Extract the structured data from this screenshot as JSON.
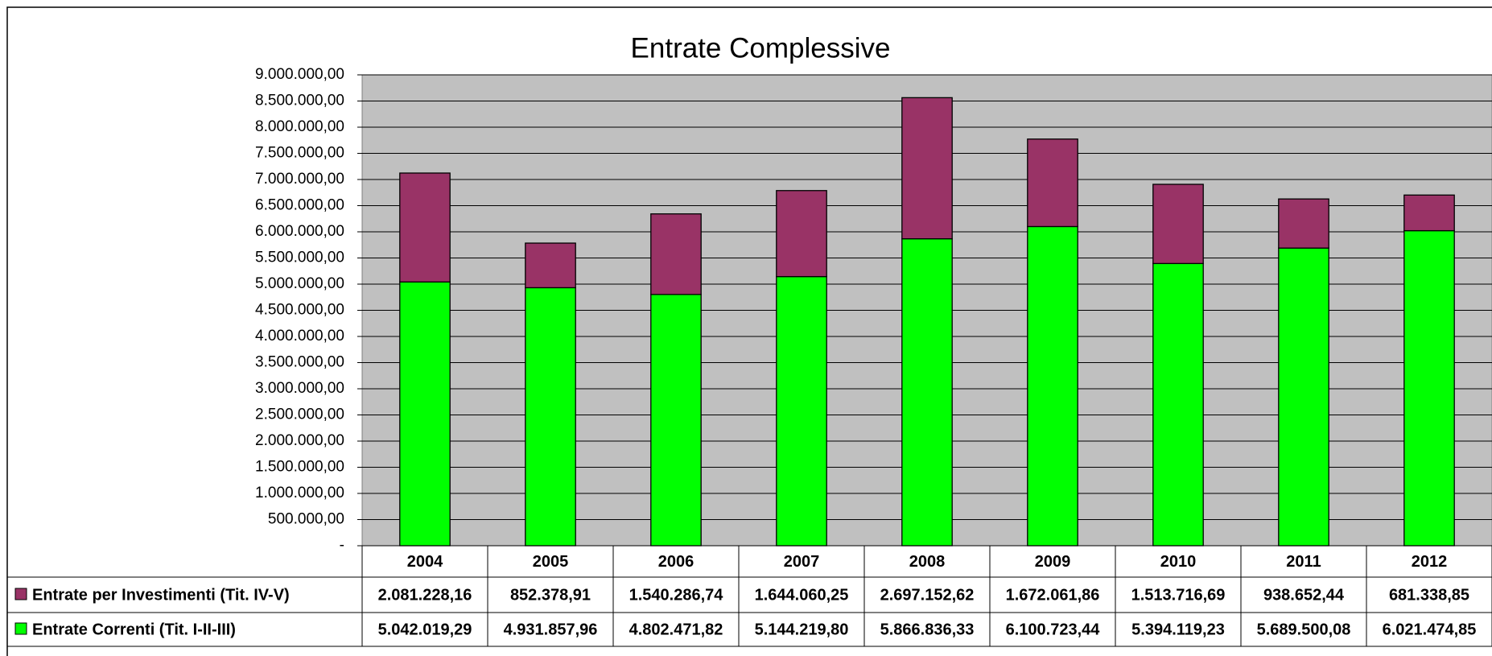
{
  "chart_data": {
    "type": "stacked_bar",
    "title": "Entrate Complessive",
    "categories": [
      "2004",
      "2005",
      "2006",
      "2007",
      "2008",
      "2009",
      "2010",
      "2011",
      "2012"
    ],
    "series": [
      {
        "name": "Entrate per Investimenti (Tit. IV-V)",
        "color": "#993366",
        "values": [
          2081228.16,
          852378.91,
          1540286.74,
          1644060.25,
          2697152.62,
          1672061.86,
          1513716.69,
          938652.44,
          681338.85
        ],
        "value_labels": [
          "2.081.228,16",
          "852.378,91",
          "1.540.286,74",
          "1.644.060,25",
          "2.697.152,62",
          "1.672.061,86",
          "1.513.716,69",
          "938.652,44",
          "681.338,85"
        ]
      },
      {
        "name": "Entrate Correnti (Tit. I-II-III)",
        "color": "#00ff00",
        "values": [
          5042019.29,
          4931857.96,
          4802471.82,
          5144219.8,
          5866836.33,
          6100723.44,
          5394119.23,
          5689500.08,
          6021474.85
        ],
        "value_labels": [
          "5.042.019,29",
          "4.931.857,96",
          "4.802.471,82",
          "5.144.219,80",
          "5.866.836,33",
          "6.100.723,44",
          "5.394.119,23",
          "5.689.500,08",
          "6.021.474,85"
        ]
      }
    ],
    "ylim": [
      0,
      9000000
    ],
    "yticks": [
      {
        "value": 0,
        "label": "-"
      },
      {
        "value": 500000,
        "label": "500.000,00"
      },
      {
        "value": 1000000,
        "label": "1.000.000,00"
      },
      {
        "value": 1500000,
        "label": "1.500.000,00"
      },
      {
        "value": 2000000,
        "label": "2.000.000,00"
      },
      {
        "value": 2500000,
        "label": "2.500.000,00"
      },
      {
        "value": 3000000,
        "label": "3.000.000,00"
      },
      {
        "value": 3500000,
        "label": "3.500.000,00"
      },
      {
        "value": 4000000,
        "label": "4.000.000,00"
      },
      {
        "value": 4500000,
        "label": "4.500.000,00"
      },
      {
        "value": 5000000,
        "label": "5.000.000,00"
      },
      {
        "value": 5500000,
        "label": "5.500.000,00"
      },
      {
        "value": 6000000,
        "label": "6.000.000,00"
      },
      {
        "value": 6500000,
        "label": "6.500.000,00"
      },
      {
        "value": 7000000,
        "label": "7.000.000,00"
      },
      {
        "value": 7500000,
        "label": "7.500.000,00"
      },
      {
        "value": 8000000,
        "label": "8.000.000,00"
      },
      {
        "value": 8500000,
        "label": "8.500.000,00"
      },
      {
        "value": 9000000,
        "label": "9.000.000,00"
      }
    ],
    "grid": true,
    "plot_background": "#c0c0c0"
  }
}
